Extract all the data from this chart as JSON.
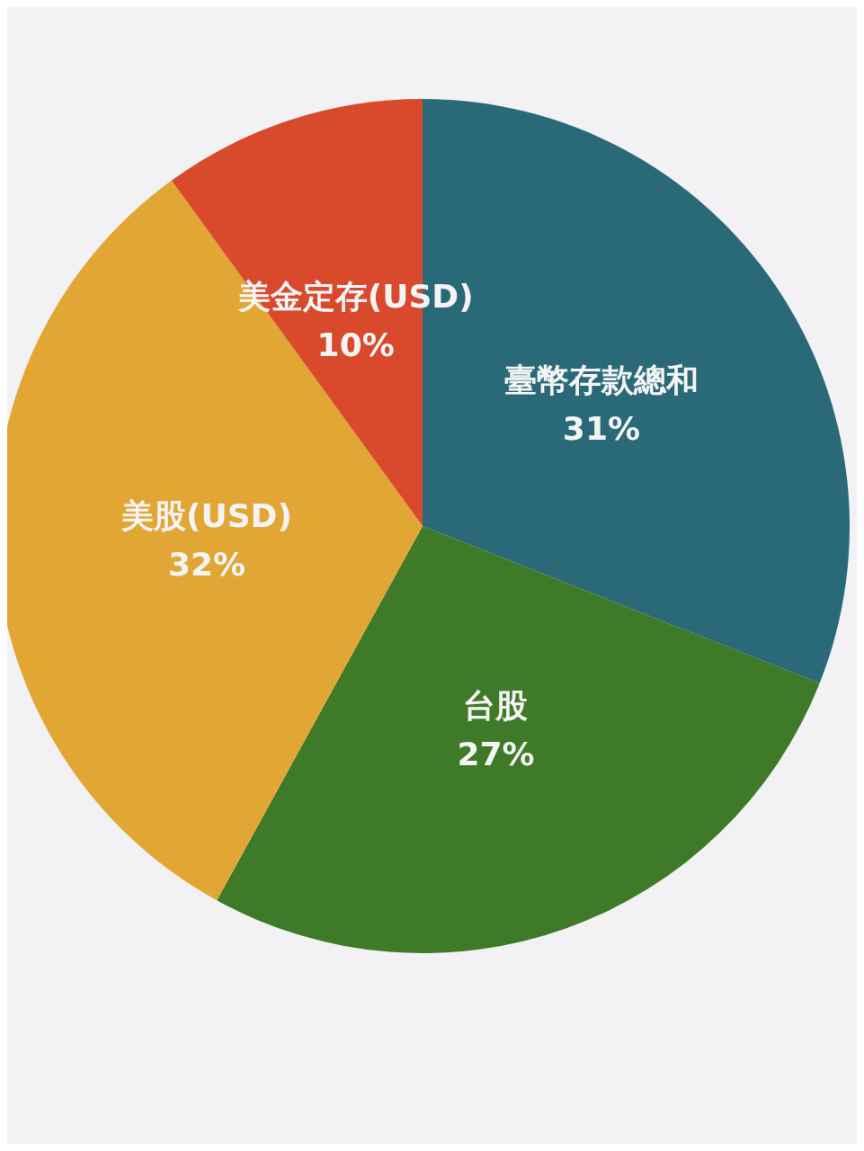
{
  "chart_data": {
    "type": "pie",
    "categories": [
      "臺幣存款總和",
      "台股",
      "美股(USD)",
      "美金定存(USD)"
    ],
    "values": [
      31,
      27,
      32,
      10
    ],
    "value_labels": [
      "31%",
      "27%",
      "32%",
      "10%"
    ],
    "colors": [
      "#2a6a78",
      "#3f7a28",
      "#e2a634",
      "#d94a2c"
    ]
  }
}
